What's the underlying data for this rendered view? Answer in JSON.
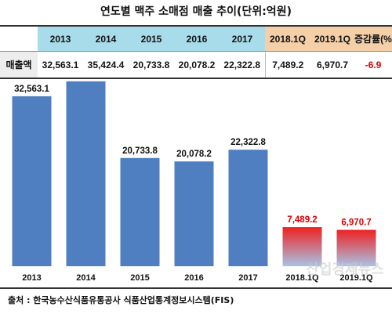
{
  "title": "연도별 맥주 소매점 매출 추이(단위:억원)",
  "table": {
    "header": [
      "2013",
      "2014",
      "2015",
      "2016",
      "2017",
      "2018.1Q",
      "2019.1Q",
      "증감률(%)"
    ],
    "row_label": "매출액",
    "values": [
      "32,563.1",
      "35,424.4",
      "20,733.8",
      "20,078.2",
      "22,322.8",
      "7,489.2",
      "6,970.7",
      "-6.9"
    ]
  },
  "chart_data": {
    "type": "bar",
    "categories": [
      "2013",
      "2014",
      "2015",
      "2016",
      "2017",
      "2018.1Q",
      "2019.1Q"
    ],
    "values": [
      32563.1,
      35424.4,
      20733.8,
      20078.2,
      22322.8,
      7489.2,
      6970.7
    ],
    "value_labels": [
      "32,563.1",
      "35,424.4",
      "20,733.8",
      "20,078.2",
      "22,322.8",
      "7,489.2",
      "6,970.7"
    ],
    "title": "",
    "xlabel": "",
    "ylabel": "",
    "ylim": [
      0,
      40000
    ],
    "grid": false,
    "colors": {
      "annual_bar": "#4f7fc0",
      "quarter_bar_top": "#ee2222",
      "quarter_bar_bottom": "#a9c3e6",
      "annual_label": "#111111",
      "quarter_label": "#e00000"
    }
  },
  "watermark": "산업경제뉴스",
  "source": "출처 : 한국농수산식품유통공사 식품산업통계정보시스템(FIS)"
}
